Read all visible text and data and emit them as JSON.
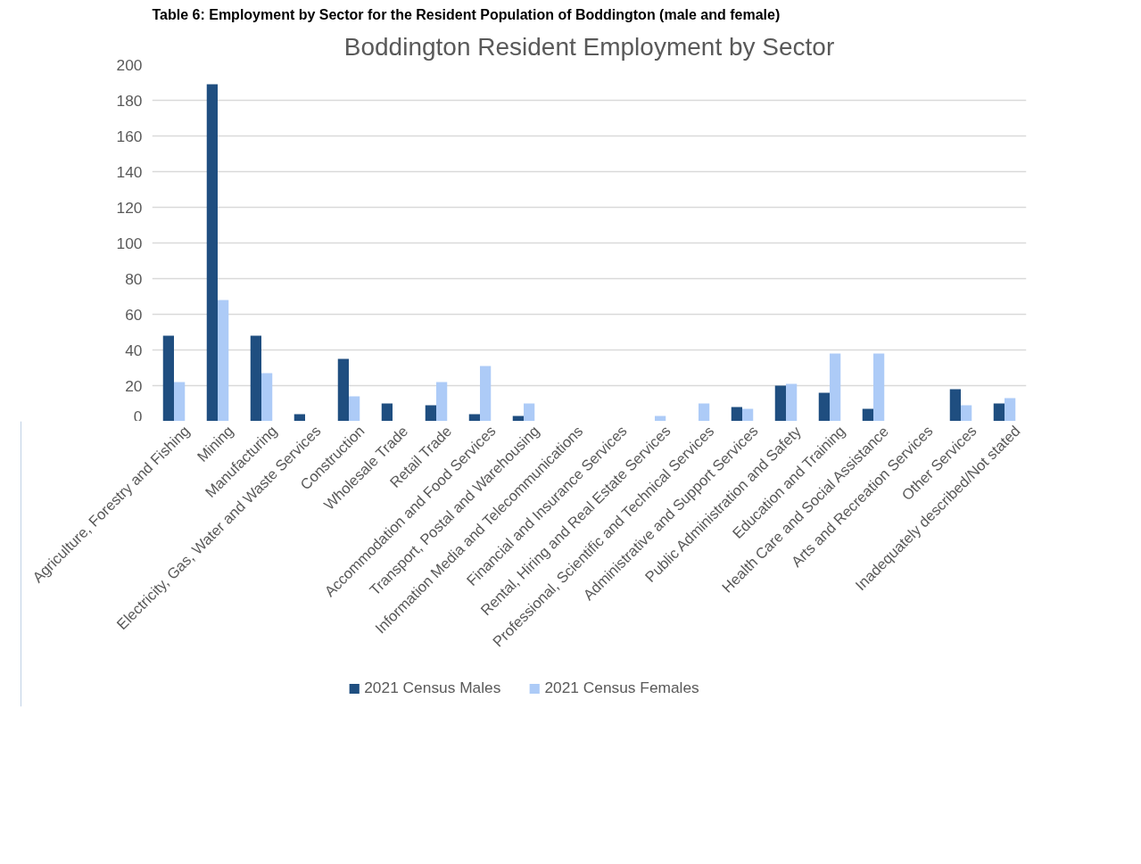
{
  "chart_data": {
    "type": "bar",
    "title": "Boddington Resident Employment by Sector",
    "annotations": [
      "Table 6: Employment by Sector for the Resident Population of Boddington (male and female)"
    ],
    "categories": [
      "Agriculture, Forestry and Fishing",
      "Mining",
      "Manufacturing",
      "Electricity, Gas, Water and Waste Services",
      "Construction",
      "Wholesale Trade",
      "Retail Trade",
      "Accommodation and Food Services",
      "Transport, Postal and Warehousing",
      "Information Media and Telecommunications",
      "Financial and Insurance Services",
      "Rental, Hiring and Real Estate Services",
      "Professional, Scientific and Technical Services",
      "Administrative and Support Services",
      "Public Administration and Safety",
      "Education and Training",
      "Health Care and Social Assistance",
      "Arts and Recreation Services",
      "Other Services",
      "Inadequately described/Not stated"
    ],
    "series": [
      {
        "name": "2021 Census Males",
        "color": "#1f4e80",
        "values": [
          48,
          189,
          48,
          4,
          35,
          10,
          9,
          4,
          3,
          0,
          0,
          0,
          0,
          8,
          20,
          16,
          7,
          0,
          18,
          10
        ]
      },
      {
        "name": "2021 Census Females",
        "color": "#adcbf7",
        "values": [
          22,
          68,
          27,
          0,
          14,
          0,
          22,
          31,
          10,
          0,
          0,
          3,
          10,
          7,
          21,
          38,
          38,
          0,
          9,
          13
        ]
      }
    ],
    "ylim": [
      0,
      200
    ],
    "yticks": [
      0,
      20,
      40,
      60,
      80,
      100,
      120,
      140,
      160,
      180,
      200
    ],
    "grid": "y",
    "legend": "bottom"
  }
}
